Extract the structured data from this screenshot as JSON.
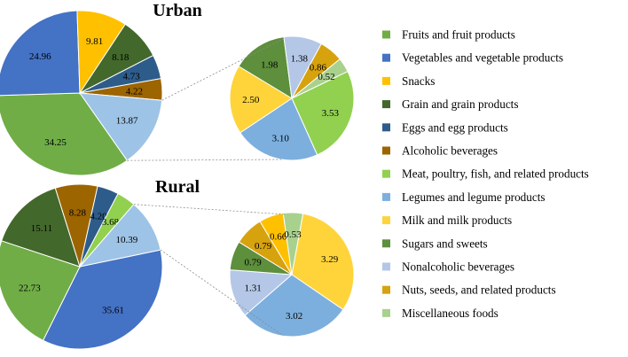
{
  "chart_data": {
    "type": "pie",
    "legend_position": "right",
    "categories": [
      {
        "name": "Fruits and fruit products",
        "color": "#70AD47"
      },
      {
        "name": "Vegetables and vegetable products",
        "color": "#4472C4"
      },
      {
        "name": "Snacks",
        "color": "#FFC000"
      },
      {
        "name": "Grain and grain products",
        "color": "#43682B"
      },
      {
        "name": "Eggs and egg products",
        "color": "#2E5C8A"
      },
      {
        "name": "Alcoholic beverages",
        "color": "#9C6500"
      },
      {
        "name": "Meat, poultry, fish, and related products",
        "color": "#92D050"
      },
      {
        "name": "Legumes and legume products",
        "color": "#7CAFDD"
      },
      {
        "name": "Milk and milk products",
        "color": "#FFD43B"
      },
      {
        "name": "Sugars and sweets",
        "color": "#5D8F3C"
      },
      {
        "name": "Nonalcoholic beverages",
        "color": "#B4C7E7"
      },
      {
        "name": "Nuts, seeds, and related products",
        "color": "#D6A20E"
      },
      {
        "name": "Miscellaneous foods",
        "color": "#A9D18E"
      }
    ],
    "pies": [
      {
        "title": "Urban",
        "main_slices": [
          {
            "category": "Fruits and fruit products",
            "value": 34.25
          },
          {
            "category": "Vegetables and vegetable products",
            "value": 24.96
          },
          {
            "category": "Snacks",
            "value": 9.81
          },
          {
            "category": "Grain and grain products",
            "value": 8.18
          },
          {
            "category": "Eggs and egg products",
            "value": 4.73
          },
          {
            "category": "Alcoholic beverages",
            "value": 4.22
          },
          {
            "category": "Other (see detail pie)",
            "value": 13.87
          }
        ],
        "detail_slices": [
          {
            "category": "Meat, poultry, fish, and related products",
            "value": 3.53
          },
          {
            "category": "Legumes and legume products",
            "value": 3.1
          },
          {
            "category": "Milk and milk products",
            "value": 2.5
          },
          {
            "category": "Sugars and sweets",
            "value": 1.98
          },
          {
            "category": "Nonalcoholic beverages",
            "value": 1.38
          },
          {
            "category": "Nuts, seeds, and related products",
            "value": 0.86
          },
          {
            "category": "Miscellaneous foods",
            "value": 0.52
          }
        ]
      },
      {
        "title": "Rural",
        "main_slices": [
          {
            "category": "Vegetables and vegetable products",
            "value": 35.61
          },
          {
            "category": "Fruits and fruit products",
            "value": 22.73
          },
          {
            "category": "Grain and grain products",
            "value": 15.11
          },
          {
            "category": "Alcoholic beverages",
            "value": 8.28
          },
          {
            "category": "Eggs and egg products",
            "value": 4.2
          },
          {
            "category": "Meat, poultry, fish, and related products",
            "value": 3.68
          },
          {
            "category": "Other (see detail pie)",
            "value": 10.39
          }
        ],
        "detail_slices": [
          {
            "category": "Milk and milk products",
            "value": 3.29
          },
          {
            "category": "Legumes and legume products",
            "value": 3.02
          },
          {
            "category": "Nonalcoholic beverages",
            "value": 1.31
          },
          {
            "category": "Sugars and sweets",
            "value": 0.79
          },
          {
            "category": "Nuts, seeds, and related products",
            "value": 0.79
          },
          {
            "category": "Snacks",
            "value": 0.66
          },
          {
            "category": "Miscellaneous foods",
            "value": 0.53
          }
        ]
      }
    ]
  }
}
